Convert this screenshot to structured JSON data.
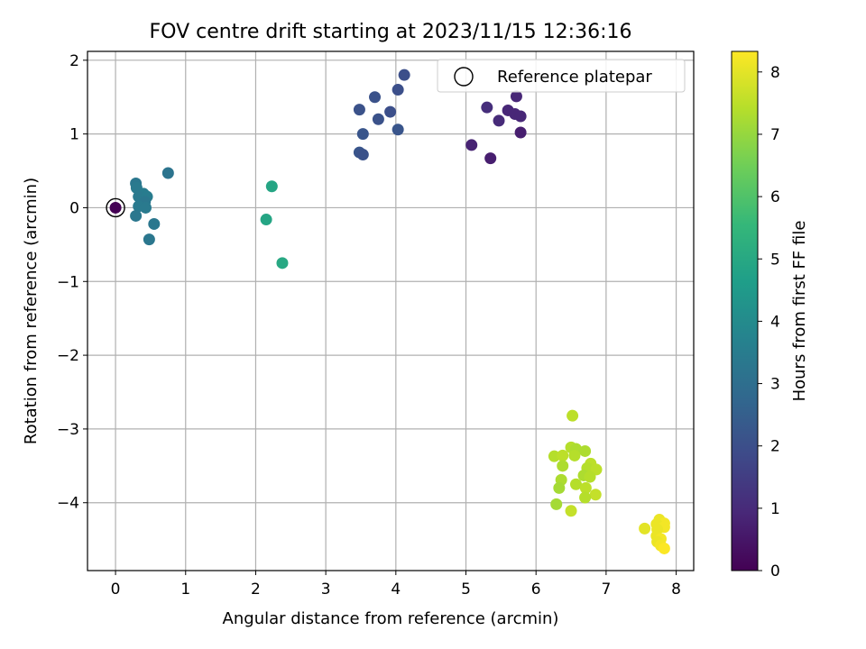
{
  "chart_data": {
    "type": "scatter",
    "title": "FOV centre drift starting at 2023/11/15 12:36:16",
    "xlabel": "Angular distance from reference (arcmin)",
    "ylabel": "Rotation from reference (arcmin)",
    "xlim": [
      -0.4,
      8.25
    ],
    "ylim": [
      -4.92,
      2.12
    ],
    "xticks": [
      0,
      1,
      2,
      3,
      4,
      5,
      6,
      7,
      8
    ],
    "yticks": [
      2,
      1,
      0,
      -1,
      -2,
      -3,
      -4
    ],
    "grid": true,
    "legend": {
      "position": "top-right",
      "entries": [
        {
          "label": "Reference platepar",
          "marker": "hollow-circle"
        }
      ]
    },
    "colorbar": {
      "label": "Hours from first FF file",
      "colormap": "viridis",
      "range": [
        0,
        8.33
      ],
      "ticks": [
        0,
        1,
        2,
        3,
        4,
        5,
        6,
        7,
        8
      ]
    },
    "reference_point": {
      "x": 0,
      "y": 0,
      "hours": 0
    },
    "points": [
      {
        "x": 5.72,
        "y": 1.51,
        "hours": 0.9
      },
      {
        "x": 5.3,
        "y": 1.36,
        "hours": 1.1
      },
      {
        "x": 5.6,
        "y": 1.32,
        "hours": 0.9
      },
      {
        "x": 5.7,
        "y": 1.27,
        "hours": 0.9
      },
      {
        "x": 5.78,
        "y": 1.24,
        "hours": 0.9
      },
      {
        "x": 5.47,
        "y": 1.18,
        "hours": 1.0
      },
      {
        "x": 5.78,
        "y": 1.02,
        "hours": 0.7
      },
      {
        "x": 5.08,
        "y": 0.85,
        "hours": 0.8
      },
      {
        "x": 5.35,
        "y": 0.67,
        "hours": 0.7
      },
      {
        "x": 4.12,
        "y": 1.8,
        "hours": 2.0
      },
      {
        "x": 4.03,
        "y": 1.6,
        "hours": 2.0
      },
      {
        "x": 3.7,
        "y": 1.5,
        "hours": 2.1
      },
      {
        "x": 3.48,
        "y": 1.33,
        "hours": 2.1
      },
      {
        "x": 3.92,
        "y": 1.3,
        "hours": 2.0
      },
      {
        "x": 3.75,
        "y": 1.2,
        "hours": 2.1
      },
      {
        "x": 4.03,
        "y": 1.06,
        "hours": 2.2
      },
      {
        "x": 3.53,
        "y": 1.0,
        "hours": 2.2
      },
      {
        "x": 3.48,
        "y": 0.75,
        "hours": 2.2
      },
      {
        "x": 3.53,
        "y": 0.72,
        "hours": 2.1
      },
      {
        "x": 0.75,
        "y": 0.47,
        "hours": 3.2
      },
      {
        "x": 0.29,
        "y": 0.33,
        "hours": 3.3
      },
      {
        "x": 0.3,
        "y": 0.27,
        "hours": 3.4
      },
      {
        "x": 0.4,
        "y": 0.19,
        "hours": 3.5
      },
      {
        "x": 0.33,
        "y": 0.15,
        "hours": 3.4
      },
      {
        "x": 0.45,
        "y": 0.15,
        "hours": 3.5
      },
      {
        "x": 0.42,
        "y": 0.08,
        "hours": 3.3
      },
      {
        "x": 0.33,
        "y": 0.02,
        "hours": 3.4
      },
      {
        "x": 0.43,
        "y": 0.0,
        "hours": 3.4
      },
      {
        "x": 0.29,
        "y": -0.11,
        "hours": 3.3
      },
      {
        "x": 0.55,
        "y": -0.22,
        "hours": 3.3
      },
      {
        "x": 0.48,
        "y": -0.43,
        "hours": 3.3
      },
      {
        "x": 2.23,
        "y": 0.29,
        "hours": 4.9
      },
      {
        "x": 2.15,
        "y": -0.16,
        "hours": 4.9
      },
      {
        "x": 2.38,
        "y": -0.75,
        "hours": 5.0
      },
      {
        "x": 6.52,
        "y": -2.82,
        "hours": 7.5
      },
      {
        "x": 6.5,
        "y": -3.25,
        "hours": 7.4
      },
      {
        "x": 6.57,
        "y": -3.27,
        "hours": 7.3
      },
      {
        "x": 6.7,
        "y": -3.3,
        "hours": 7.3
      },
      {
        "x": 6.26,
        "y": -3.37,
        "hours": 7.4
      },
      {
        "x": 6.38,
        "y": -3.36,
        "hours": 7.5
      },
      {
        "x": 6.55,
        "y": -3.36,
        "hours": 7.4
      },
      {
        "x": 6.78,
        "y": -3.47,
        "hours": 7.5
      },
      {
        "x": 6.38,
        "y": -3.5,
        "hours": 7.3
      },
      {
        "x": 6.73,
        "y": -3.53,
        "hours": 7.4
      },
      {
        "x": 6.86,
        "y": -3.55,
        "hours": 7.5
      },
      {
        "x": 6.68,
        "y": -3.63,
        "hours": 7.3
      },
      {
        "x": 6.77,
        "y": -3.65,
        "hours": 7.4
      },
      {
        "x": 6.36,
        "y": -3.69,
        "hours": 7.3
      },
      {
        "x": 6.57,
        "y": -3.75,
        "hours": 7.4
      },
      {
        "x": 6.33,
        "y": -3.8,
        "hours": 7.2
      },
      {
        "x": 6.71,
        "y": -3.8,
        "hours": 7.5
      },
      {
        "x": 6.85,
        "y": -3.89,
        "hours": 7.6
      },
      {
        "x": 6.7,
        "y": -3.93,
        "hours": 7.4
      },
      {
        "x": 6.29,
        "y": -4.02,
        "hours": 7.2
      },
      {
        "x": 6.5,
        "y": -4.11,
        "hours": 7.6
      },
      {
        "x": 7.76,
        "y": -4.23,
        "hours": 8.1
      },
      {
        "x": 7.83,
        "y": -4.28,
        "hours": 8.2
      },
      {
        "x": 7.72,
        "y": -4.29,
        "hours": 8.1
      },
      {
        "x": 7.83,
        "y": -4.33,
        "hours": 8.2
      },
      {
        "x": 7.55,
        "y": -4.35,
        "hours": 8.0
      },
      {
        "x": 7.73,
        "y": -4.36,
        "hours": 8.1
      },
      {
        "x": 7.72,
        "y": -4.45,
        "hours": 8.1
      },
      {
        "x": 7.78,
        "y": -4.49,
        "hours": 8.2
      },
      {
        "x": 7.73,
        "y": -4.53,
        "hours": 8.1
      },
      {
        "x": 7.78,
        "y": -4.58,
        "hours": 8.2
      },
      {
        "x": 7.83,
        "y": -4.62,
        "hours": 8.3
      }
    ]
  }
}
